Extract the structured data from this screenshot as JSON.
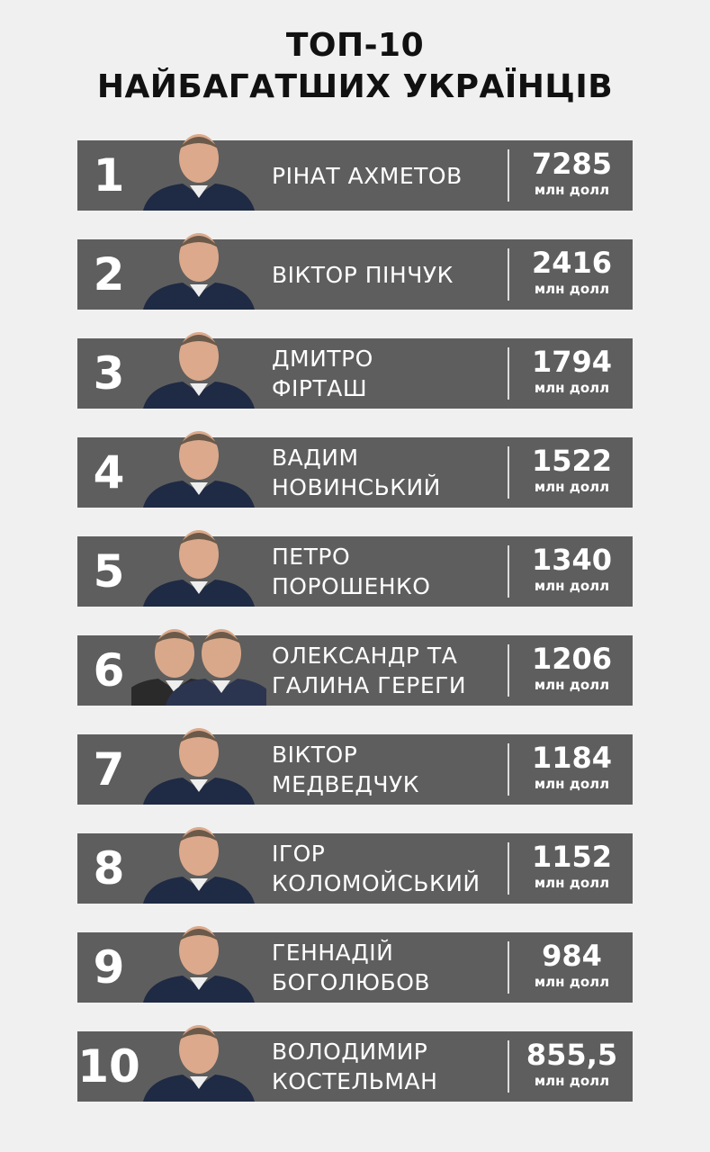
{
  "title_line1": "ТОП-10",
  "title_line2": "НАЙБАГАТШИХ УКРАЇНЦІВ",
  "unit": "млн долл",
  "rows": [
    {
      "rank": "1",
      "name1": "РІНАТ АХМЕТОВ",
      "name2": "",
      "value": "7285",
      "photo": "person-photo"
    },
    {
      "rank": "2",
      "name1": "ВІКТОР ПІНЧУК",
      "name2": "",
      "value": "2416",
      "photo": "person-photo"
    },
    {
      "rank": "3",
      "name1": "ДМИТРО",
      "name2": "ФІРТАШ",
      "value": "1794",
      "photo": "person-photo"
    },
    {
      "rank": "4",
      "name1": "ВАДИМ",
      "name2": "НОВИНСЬКИЙ",
      "value": "1522",
      "photo": "person-photo"
    },
    {
      "rank": "5",
      "name1": "ПЕТРО",
      "name2": "ПОРОШЕНКО",
      "value": "1340",
      "photo": "person-photo"
    },
    {
      "rank": "6",
      "name1": "ОЛЕКСАНДР ТА",
      "name2": "ГАЛИНА ГЕРЕГИ",
      "value": "1206",
      "photo": "couple-photo"
    },
    {
      "rank": "7",
      "name1": "ВІКТОР",
      "name2": "МЕДВЕДЧУК",
      "value": "1184",
      "photo": "person-photo"
    },
    {
      "rank": "8",
      "name1": "ІГОР",
      "name2": "КОЛОМОЙСЬКИЙ",
      "value": "1152",
      "photo": "person-photo"
    },
    {
      "rank": "9",
      "name1": "ГЕННАДІЙ",
      "name2": "БОГОЛЮБОВ",
      "value": "984",
      "photo": "person-photo"
    },
    {
      "rank": "10",
      "name1": "ВОЛОДИМИР",
      "name2": "КОСТЕЛЬМАН",
      "value": "855,5",
      "photo": "person-photo"
    }
  ],
  "colors": {
    "background": "#f0f0f0",
    "bar": "#5e5e5e",
    "text": "#ffffff",
    "title": "#111111"
  }
}
